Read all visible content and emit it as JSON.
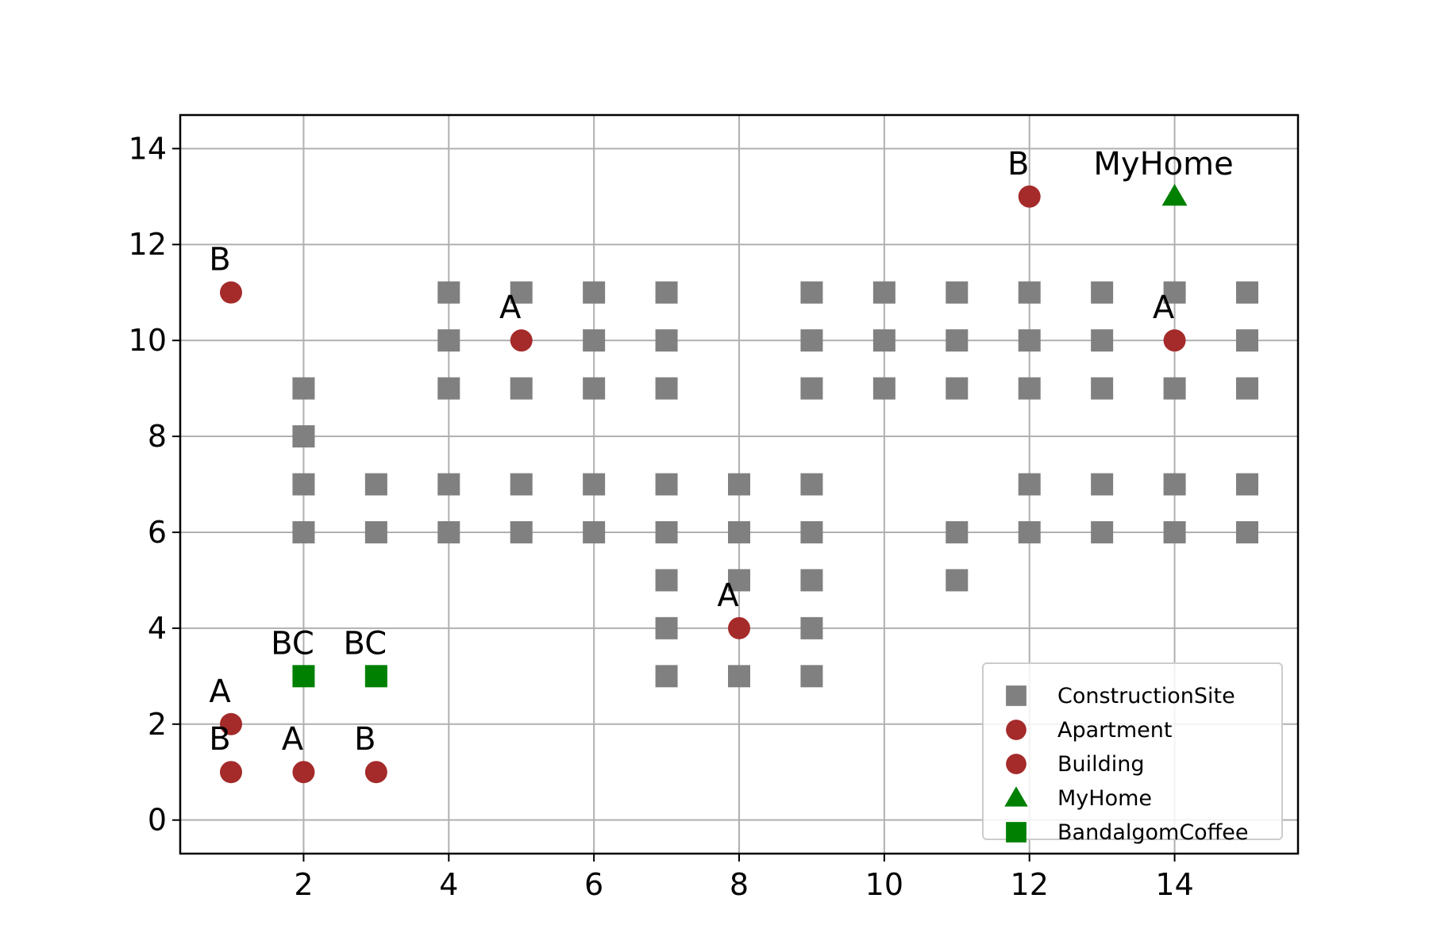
{
  "chart_data": {
    "type": "scatter",
    "title": "",
    "xlabel": "",
    "ylabel": "",
    "xlim": [
      0.3,
      15.7
    ],
    "ylim": [
      -0.7,
      14.7
    ],
    "xticks": [
      2,
      4,
      6,
      8,
      10,
      12,
      14
    ],
    "yticks": [
      0,
      2,
      4,
      6,
      8,
      10,
      12,
      14
    ],
    "grid": true,
    "legend_position": "lower-right",
    "series": [
      {
        "name": "ConstructionSite",
        "marker": "square",
        "color": "#808080",
        "points": [
          [
            4,
            11
          ],
          [
            5,
            11
          ],
          [
            6,
            11
          ],
          [
            7,
            11
          ],
          [
            9,
            11
          ],
          [
            10,
            11
          ],
          [
            11,
            11
          ],
          [
            12,
            11
          ],
          [
            13,
            11
          ],
          [
            14,
            11
          ],
          [
            15,
            11
          ],
          [
            4,
            10
          ],
          [
            6,
            10
          ],
          [
            7,
            10
          ],
          [
            9,
            10
          ],
          [
            10,
            10
          ],
          [
            11,
            10
          ],
          [
            12,
            10
          ],
          [
            13,
            10
          ],
          [
            15,
            10
          ],
          [
            2,
            9
          ],
          [
            4,
            9
          ],
          [
            5,
            9
          ],
          [
            6,
            9
          ],
          [
            7,
            9
          ],
          [
            9,
            9
          ],
          [
            10,
            9
          ],
          [
            11,
            9
          ],
          [
            12,
            9
          ],
          [
            13,
            9
          ],
          [
            14,
            9
          ],
          [
            15,
            9
          ],
          [
            2,
            8
          ],
          [
            2,
            7
          ],
          [
            3,
            7
          ],
          [
            4,
            7
          ],
          [
            5,
            7
          ],
          [
            6,
            7
          ],
          [
            7,
            7
          ],
          [
            8,
            7
          ],
          [
            9,
            7
          ],
          [
            12,
            7
          ],
          [
            13,
            7
          ],
          [
            14,
            7
          ],
          [
            15,
            7
          ],
          [
            2,
            6
          ],
          [
            3,
            6
          ],
          [
            4,
            6
          ],
          [
            5,
            6
          ],
          [
            6,
            6
          ],
          [
            7,
            6
          ],
          [
            8,
            6
          ],
          [
            9,
            6
          ],
          [
            11,
            6
          ],
          [
            12,
            6
          ],
          [
            13,
            6
          ],
          [
            14,
            6
          ],
          [
            15,
            6
          ],
          [
            7,
            5
          ],
          [
            8,
            5
          ],
          [
            9,
            5
          ],
          [
            11,
            5
          ],
          [
            7,
            4
          ],
          [
            9,
            4
          ],
          [
            7,
            3
          ],
          [
            8,
            3
          ],
          [
            9,
            3
          ]
        ]
      },
      {
        "name": "Apartment",
        "marker": "circle",
        "color": "#a52a2a",
        "points": [
          {
            "x": 5,
            "y": 10,
            "label": "A"
          },
          {
            "x": 14,
            "y": 10,
            "label": "A"
          },
          {
            "x": 8,
            "y": 4,
            "label": "A"
          },
          {
            "x": 1,
            "y": 2,
            "label": "A"
          },
          {
            "x": 2,
            "y": 1,
            "label": "A"
          }
        ]
      },
      {
        "name": "Building",
        "marker": "circle",
        "color": "#a52a2a",
        "points": [
          {
            "x": 12,
            "y": 13,
            "label": "B"
          },
          {
            "x": 1,
            "y": 11,
            "label": "B"
          },
          {
            "x": 1,
            "y": 1,
            "label": "B"
          },
          {
            "x": 3,
            "y": 1,
            "label": "B"
          }
        ]
      },
      {
        "name": "MyHome",
        "marker": "triangle",
        "color": "#008000",
        "points": [
          {
            "x": 14,
            "y": 13,
            "label": "MyHome"
          }
        ]
      },
      {
        "name": "BandalgomCoffee",
        "marker": "square",
        "color": "#008000",
        "points": [
          {
            "x": 2,
            "y": 3,
            "label": "BC"
          },
          {
            "x": 3,
            "y": 3,
            "label": "BC"
          }
        ]
      }
    ]
  }
}
